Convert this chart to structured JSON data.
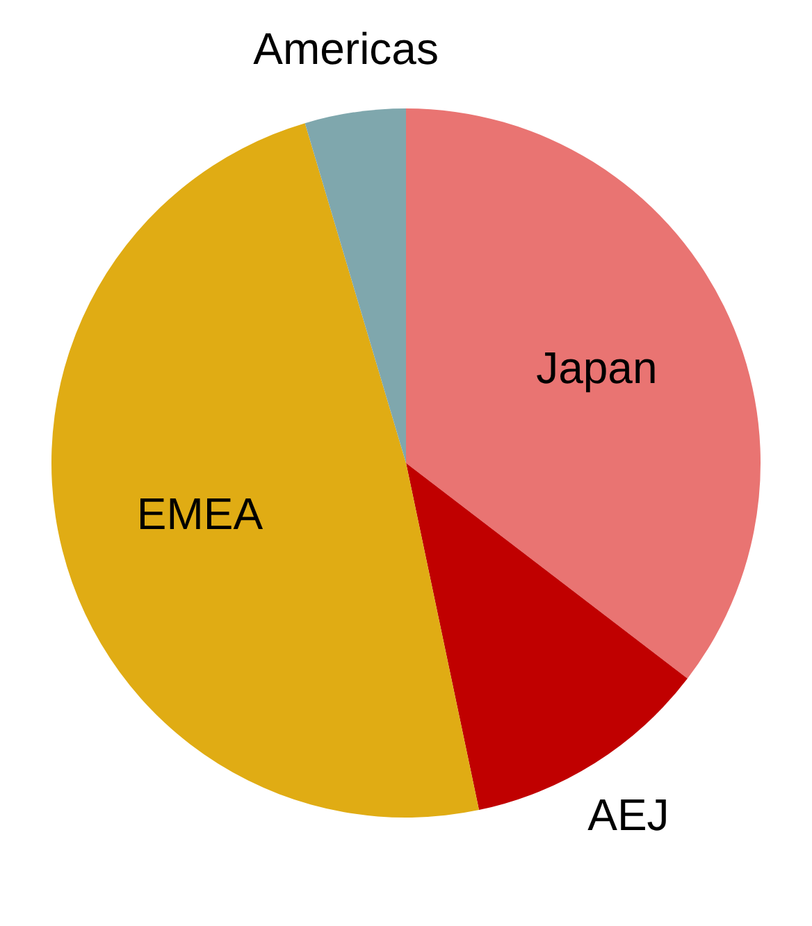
{
  "chart_data": {
    "type": "pie",
    "categories": [
      "Japan",
      "AEJ",
      "EMEA",
      "Americas"
    ],
    "values": [
      35.4,
      11.3,
      48.7,
      4.6
    ],
    "colors": [
      "#e97472",
      "#c00000",
      "#e0ac14",
      "#7fa7ad"
    ]
  }
}
